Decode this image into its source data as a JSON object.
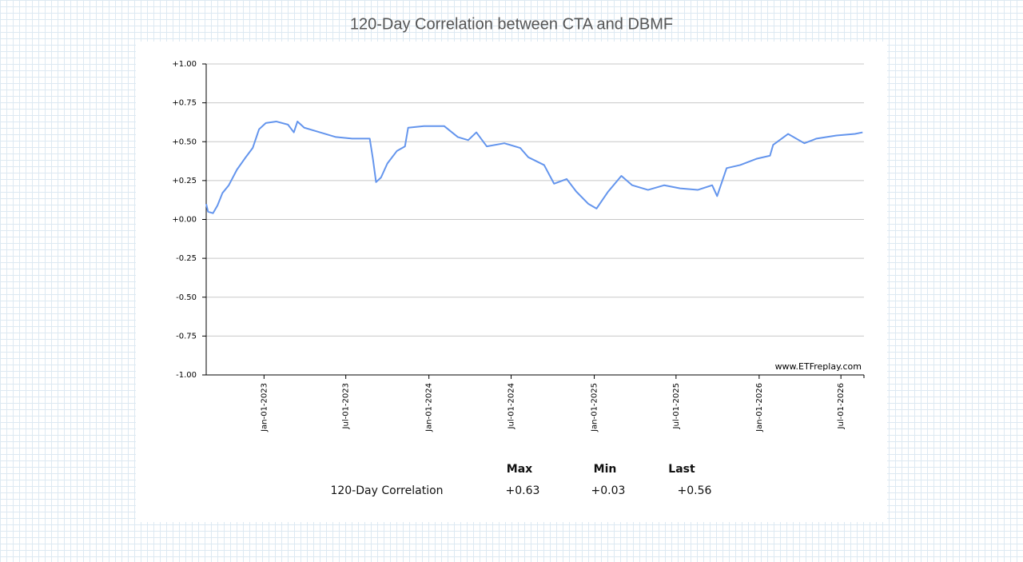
{
  "chart_data": {
    "type": "line",
    "title": "120-Day Correlation between CTA and DBMF",
    "watermark": "www.ETFreplay.com",
    "color": "#6495ed",
    "grid": true,
    "x": [
      "2022-08-26",
      "2022-08-30",
      "2022-09-10",
      "2022-09-20",
      "2022-10-01",
      "2022-10-15",
      "2022-11-02",
      "2022-11-19",
      "2022-12-07",
      "2022-12-21",
      "2023-01-05",
      "2023-01-28",
      "2023-02-23",
      "2023-03-08",
      "2023-03-16",
      "2023-03-31",
      "2023-05-05",
      "2023-06-09",
      "2023-07-15",
      "2023-08-23",
      "2023-08-30",
      "2023-09-06",
      "2023-09-17",
      "2023-10-01",
      "2023-10-22",
      "2023-11-09",
      "2023-11-16",
      "2023-12-21",
      "2024-02-04",
      "2024-03-05",
      "2024-03-28",
      "2024-04-15",
      "2024-05-08",
      "2024-06-16",
      "2024-07-21",
      "2024-08-08",
      "2024-09-12",
      "2024-10-04",
      "2024-11-01",
      "2024-11-22",
      "2024-12-19",
      "2025-01-06",
      "2025-02-01",
      "2025-03-02",
      "2025-03-26",
      "2025-04-30",
      "2025-06-05",
      "2025-07-10",
      "2025-08-18",
      "2025-09-19",
      "2025-09-30",
      "2025-10-21",
      "2025-11-20",
      "2025-12-26",
      "2026-01-25",
      "2026-02-01",
      "2026-03-06",
      "2026-04-11",
      "2026-05-08",
      "2026-06-21",
      "2026-08-01",
      "2026-08-18"
    ],
    "values": [
      0.1,
      0.05,
      0.04,
      0.09,
      0.17,
      0.22,
      0.32,
      0.39,
      0.46,
      0.58,
      0.62,
      0.63,
      0.61,
      0.56,
      0.63,
      0.59,
      0.56,
      0.53,
      0.52,
      0.52,
      0.39,
      0.24,
      0.27,
      0.36,
      0.44,
      0.47,
      0.59,
      0.6,
      0.6,
      0.53,
      0.51,
      0.56,
      0.47,
      0.49,
      0.46,
      0.4,
      0.35,
      0.23,
      0.26,
      0.18,
      0.1,
      0.07,
      0.18,
      0.28,
      0.22,
      0.19,
      0.22,
      0.2,
      0.19,
      0.22,
      0.15,
      0.33,
      0.35,
      0.39,
      0.41,
      0.48,
      0.55,
      0.49,
      0.52,
      0.54,
      0.55,
      0.56
    ],
    "xlim": [
      "2022-08-26",
      "2026-08-21"
    ],
    "xticks": [
      {
        "value": "2023-01-01",
        "label": "Jan-01-2023"
      },
      {
        "value": "2023-07-01",
        "label": "Jul-01-2023"
      },
      {
        "value": "2024-01-01",
        "label": "Jan-01-2024"
      },
      {
        "value": "2024-07-01",
        "label": "Jul-01-2024"
      },
      {
        "value": "2025-01-01",
        "label": "Jan-01-2025"
      },
      {
        "value": "2025-07-01",
        "label": "Jul-01-2025"
      },
      {
        "value": "2026-01-01",
        "label": "Jan-01-2026"
      },
      {
        "value": "2026-07-01",
        "label": "Jul-01-2026"
      }
    ],
    "ylim": [
      -1,
      1
    ],
    "yticks": [
      {
        "value": 1,
        "label": "+1.00"
      },
      {
        "value": 0.75,
        "label": "+0.75"
      },
      {
        "value": 0.5,
        "label": "+0.50"
      },
      {
        "value": 0.25,
        "label": "+0.25"
      },
      {
        "value": 0,
        "label": "+0.00"
      },
      {
        "value": -0.25,
        "label": "-0.25"
      },
      {
        "value": -0.5,
        "label": "-0.50"
      },
      {
        "value": -0.75,
        "label": "-0.75"
      },
      {
        "value": -1,
        "label": "-1.00"
      }
    ]
  },
  "stats": {
    "columns": [
      "Max",
      "Min",
      "Last"
    ],
    "rows": [
      {
        "label": "120-Day Correlation",
        "values": [
          "+0.63",
          "+0.03",
          "+0.56"
        ]
      }
    ]
  }
}
